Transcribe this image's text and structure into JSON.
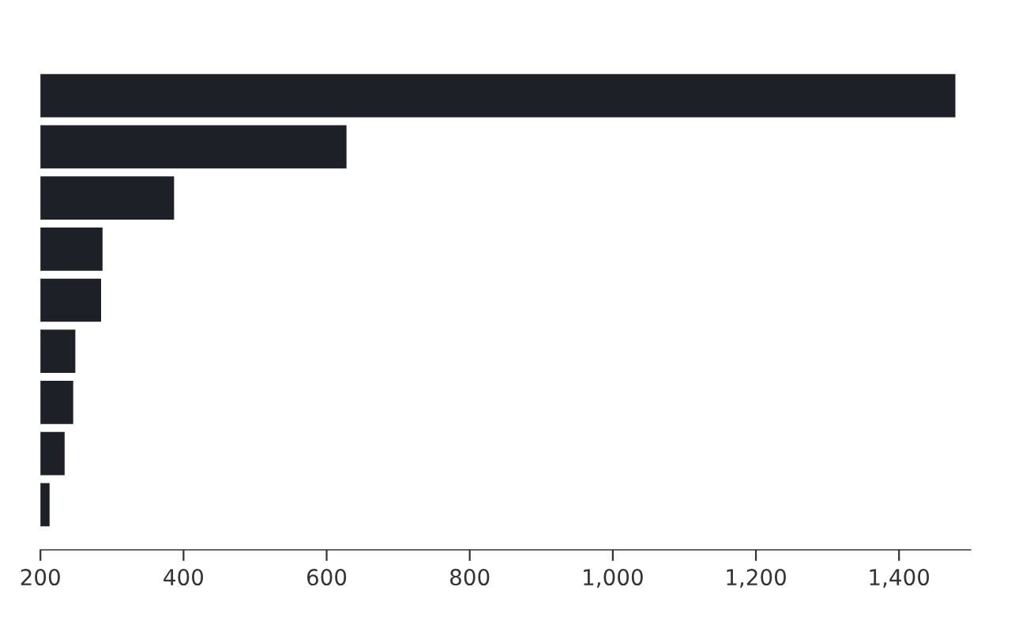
{
  "chart_data": {
    "type": "bar",
    "orientation": "horizontal",
    "categories": [
      null,
      null,
      null,
      null,
      null,
      null,
      null,
      null,
      null
    ],
    "values": [
      1480,
      629,
      388,
      288,
      286,
      250,
      247,
      235,
      214
    ],
    "color": "#1d2026",
    "xlim": [
      200,
      1500
    ],
    "xticks": [
      {
        "value": 200,
        "label": "200"
      },
      {
        "value": 400,
        "label": "400"
      },
      {
        "value": 600,
        "label": "600"
      },
      {
        "value": 800,
        "label": "800"
      },
      {
        "value": 1000,
        "label": "1,000"
      },
      {
        "value": 1200,
        "label": "1,200"
      },
      {
        "value": 1400,
        "label": "1,400"
      }
    ],
    "tick_labels": "x",
    "grid": false,
    "legend": false
  }
}
